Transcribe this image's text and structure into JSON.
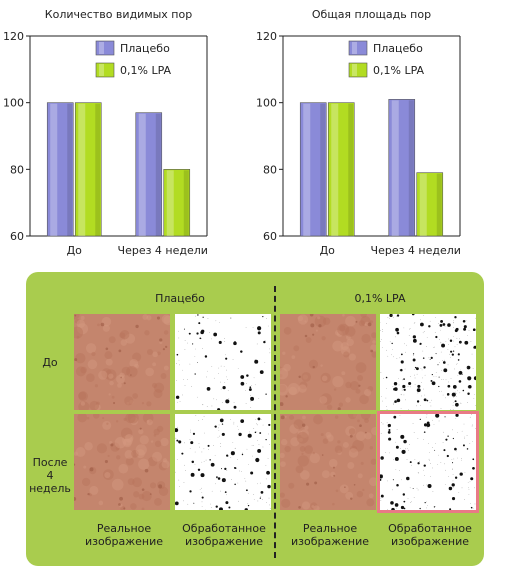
{
  "chart_data": [
    {
      "type": "bar",
      "title": "Количество видимых пор",
      "categories": [
        "До",
        "Через 4 недели"
      ],
      "ylim": [
        60,
        120
      ],
      "yticks": [
        60,
        80,
        100,
        120
      ],
      "grid": false,
      "legend": "top-right",
      "series": [
        {
          "name": "Плацебо",
          "color": "#8a8ad8",
          "values": [
            100,
            97
          ]
        },
        {
          "name": "0,1% LPA",
          "color": "#b2dc22",
          "values": [
            100,
            80
          ]
        }
      ]
    },
    {
      "type": "bar",
      "title": "Общая площадь пор",
      "categories": [
        "До",
        "Через 4 недели"
      ],
      "ylim": [
        60,
        120
      ],
      "yticks": [
        60,
        80,
        100,
        120
      ],
      "grid": false,
      "legend": "top-right",
      "series": [
        {
          "name": "Плацебо",
          "color": "#8a8ad8",
          "values": [
            100,
            101
          ]
        },
        {
          "name": "0,1% LPA",
          "color": "#b2dc22",
          "values": [
            100,
            79
          ]
        }
      ]
    }
  ],
  "panel": {
    "background": "#a9cc4e",
    "groups": [
      "Плацебо",
      "0,1% LPA"
    ],
    "rows": [
      "До",
      "После 4 недель"
    ],
    "columns": [
      "Реальное изображение",
      "Обработанное изображение",
      "Реальное изображение",
      "Обработанное изображение"
    ],
    "highlight_color": "#e97a86"
  }
}
